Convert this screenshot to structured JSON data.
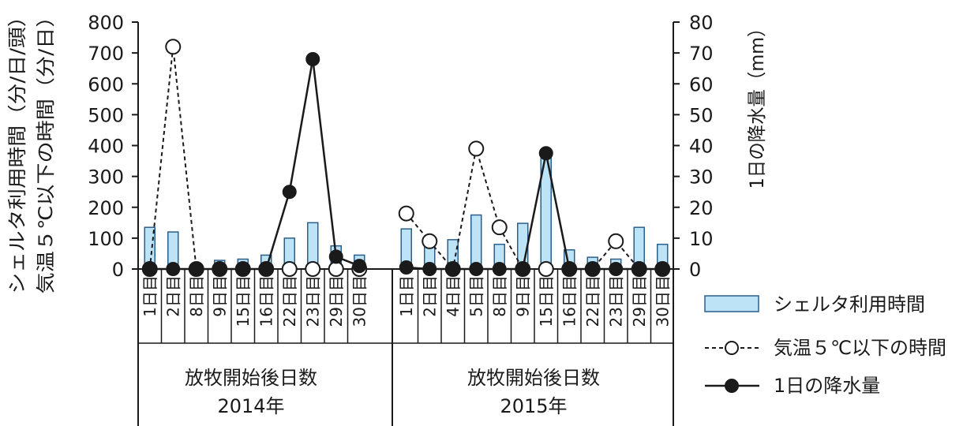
{
  "chart_data": {
    "type": "bar",
    "y_left_label_1": "シェルタ利用時間（分/日/頭）",
    "y_left_label_2": "気温５℃以下の時間（分/日）",
    "y_right_label": "1日の降水量（mm）",
    "y_left_range": [
      0,
      800
    ],
    "y_left_ticks": [
      "0",
      "100",
      "200",
      "300",
      "400",
      "500",
      "600",
      "700",
      "800"
    ],
    "y_right_range": [
      0,
      80
    ],
    "y_right_ticks": [
      "0",
      "10",
      "20",
      "30",
      "40",
      "50",
      "60",
      "70",
      "80"
    ],
    "groups": [
      {
        "label_line1": "放牧開始後日数",
        "label_line2": "2014年",
        "categories": [
          "1日目",
          "2日目",
          "8日目",
          "9日目",
          "15日目",
          "16日目",
          "22日目",
          "23日目",
          "29日目",
          "30日目"
        ],
        "shelter": [
          135,
          120,
          0,
          28,
          32,
          45,
          100,
          150,
          75,
          45
        ],
        "cold_minutes": [
          0,
          720,
          0,
          0,
          0,
          0,
          0,
          0,
          0,
          0
        ],
        "rain_mm": [
          0,
          0,
          0,
          0,
          0,
          0,
          25,
          68,
          4,
          1
        ]
      },
      {
        "label_line1": "放牧開始後日数",
        "label_line2": "2015年",
        "categories": [
          "1日目",
          "2日目",
          "4日目",
          "5日目",
          "8日目",
          "9日目",
          "15日目",
          "16日目",
          "22日目",
          "23日目",
          "29日目",
          "30日目"
        ],
        "shelter": [
          130,
          75,
          95,
          175,
          80,
          148,
          370,
          62,
          38,
          32,
          135,
          80
        ],
        "cold_minutes": [
          180,
          90,
          0,
          390,
          135,
          0,
          0,
          0,
          0,
          90,
          0,
          0
        ],
        "rain_mm": [
          0.5,
          0,
          0,
          0,
          0,
          0,
          37.5,
          0,
          0,
          0,
          0,
          0
        ]
      }
    ],
    "legend": [
      "シェルタ利用時間",
      "気温５℃以下の時間",
      "1日の降水量"
    ],
    "colors": {
      "bar_fill": "#bde3f7",
      "bar_stroke": "#2b5f8a",
      "axis": "#1a1a1a"
    }
  }
}
